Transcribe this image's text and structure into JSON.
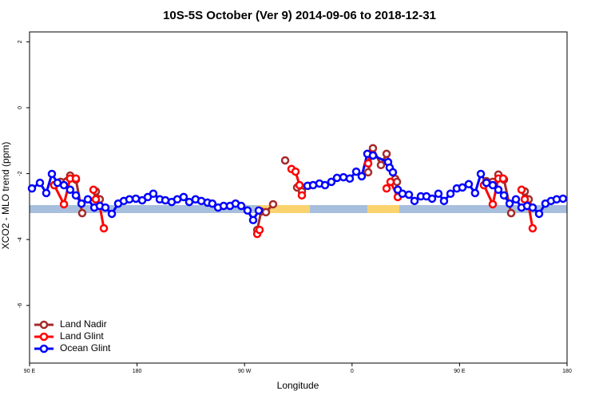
{
  "chart_data": {
    "type": "line",
    "title": "10S-5S October (Ver 9)   2014-09-06 to 2018-12-31",
    "x_label": "Longitude",
    "y_label": "XCO2 - MLO trend (ppm)",
    "xlim": [
      90,
      540
    ],
    "ylim": [
      -7.75,
      2.3
    ],
    "xticks": [
      {
        "value": 90,
        "label": "90 E"
      },
      180,
      {
        "value": 270,
        "label": "90 W"
      },
      {
        "value": 360,
        "label": "0"
      },
      {
        "value": 450,
        "label": "90 E"
      },
      {
        "value": 540,
        "label": "180"
      }
    ],
    "yticks": [
      2,
      0,
      -2,
      -4,
      -6
    ],
    "legend": "bottom-left",
    "series": [
      {
        "name": "Land Nadir",
        "color": "#a52a2a",
        "x": [
          110.7,
          116,
          124,
          128.8,
          134.1,
          null,
          145.5,
          148.8,
          null,
          280.6,
          283.9,
          287.9,
          293.9,
          null,
          304,
          null,
          314,
          318,
          323.4,
          null,
          373.5,
          377.5,
          384.2,
          388.9,
          396.2,
          397.6,
          null,
          472.5,
          477.8,
          482.5,
          487.2,
          493.2,
          null,
          504.6,
          507.9
        ],
        "values": [
          -2.35,
          -2.25,
          -2.06,
          -2.18,
          -3.2,
          null,
          -2.54,
          -2.78,
          null,
          -3.71,
          -3.15,
          -3.17,
          -2.93,
          null,
          -1.6,
          null,
          -2.42,
          -2.54,
          -2.37,
          null,
          -1.96,
          -1.23,
          -1.74,
          -1.4,
          -2.16,
          -2.25,
          null,
          -2.23,
          -2.25,
          -2.03,
          -2.18,
          -3.2,
          null,
          -2.54,
          -2.78
        ]
      },
      {
        "name": "Land Glint",
        "color": "#ff0000",
        "x": [
          110.7,
          118.8,
          124,
          128.8,
          null,
          143.5,
          145.5,
          148.8,
          152.2,
          null,
          280.6,
          282.6,
          null,
          309.3,
          312.7,
          316,
          318,
          null,
          373.5,
          374.8,
          null,
          388.9,
          392.2,
          398.3,
          null,
          470.4,
          477.8,
          482.5,
          486.5,
          null,
          501.9,
          504.6,
          507.9,
          511.2
        ],
        "values": [
          -2.35,
          -2.93,
          -2.15,
          -2.15,
          null,
          -2.49,
          -2.78,
          -2.98,
          -3.66,
          null,
          -3.83,
          -3.71,
          null,
          -1.86,
          -1.94,
          -2.35,
          -2.66,
          null,
          -1.69,
          -1.4,
          null,
          -2.45,
          -2.25,
          -2.71,
          null,
          -2.35,
          -2.93,
          -2.15,
          -2.15,
          null,
          -2.49,
          -2.78,
          -2.98,
          -3.66
        ]
      },
      {
        "name": "Ocean Glint",
        "color": "#0000ff",
        "x": [
          92,
          98.7,
          104,
          108.7,
          113.4,
          118.8,
          124,
          128.8,
          133.5,
          138.8,
          144.2,
          148.8,
          153.5,
          158.9,
          164.2,
          168.9,
          173.6,
          179,
          184.3,
          189,
          193.6,
          199,
          203.7,
          209,
          213.7,
          219,
          223.7,
          229,
          233.8,
          239,
          243,
          247.8,
          252.5,
          257.8,
          262.5,
          267.2,
          272.5,
          277.2,
          281.9,
          null,
          322.7,
          327.4,
          332.7,
          337.4,
          342.7,
          347.4,
          352.8,
          358.1,
          363.5,
          368.1,
          372.8,
          377.5,
          390.2,
          391.5,
          394.2,
          398.3,
          402.2,
          407.6,
          412.3,
          417.6,
          422.3,
          427,
          432.3,
          437,
          442.4,
          447.7,
          452.4,
          457.7,
          463,
          467.8,
          472.5,
          477.8,
          482.5,
          487.2,
          491.9,
          497.2,
          501.9,
          506.6,
          511.2,
          516.6,
          521.9,
          526.6,
          531.3,
          536.6
        ],
        "values": [
          -2.45,
          -2.28,
          -2.59,
          -2.01,
          -2.28,
          -2.35,
          -2.49,
          -2.66,
          -2.91,
          -2.78,
          -3.03,
          -2.98,
          -3.03,
          -3.22,
          -2.91,
          -2.83,
          -2.78,
          -2.76,
          -2.81,
          -2.71,
          -2.61,
          -2.78,
          -2.81,
          -2.86,
          -2.78,
          -2.71,
          -2.86,
          -2.78,
          -2.83,
          -2.88,
          -2.91,
          -3.03,
          -2.98,
          -2.98,
          -2.91,
          -2.98,
          -3.12,
          -3.41,
          -3.12,
          null,
          -2.37,
          -2.35,
          -2.3,
          -2.35,
          -2.25,
          -2.13,
          -2.11,
          -2.15,
          -1.94,
          -2.08,
          -1.4,
          -1.45,
          -1.65,
          -1.82,
          -1.96,
          -2.49,
          -2.61,
          -2.64,
          -2.83,
          -2.69,
          -2.69,
          -2.76,
          -2.61,
          -2.83,
          -2.61,
          -2.45,
          -2.42,
          -2.32,
          -2.59,
          -2.01,
          -2.28,
          -2.35,
          -2.49,
          -2.66,
          -2.91,
          -2.78,
          -3.03,
          -2.98,
          -3.03,
          -3.22,
          -2.91,
          -2.83,
          -2.78,
          -2.76
        ]
      }
    ]
  }
}
